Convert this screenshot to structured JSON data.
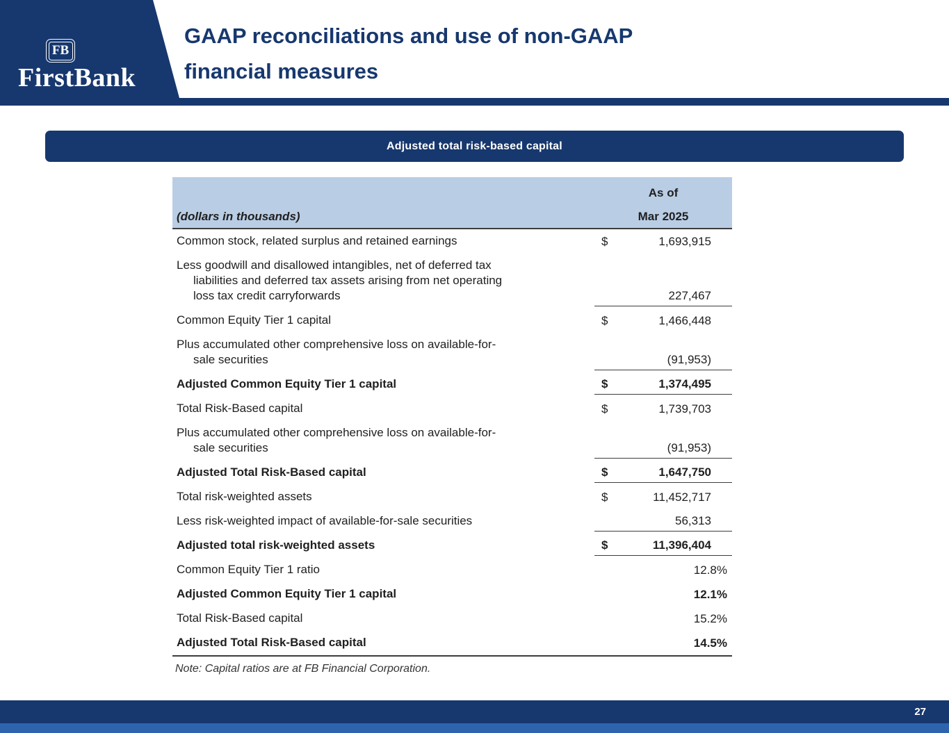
{
  "colors": {
    "navy": "#17386e",
    "table_header_bg": "#b9cde4",
    "footer_accent": "#2d64ad",
    "rule": "#3c3c3c"
  },
  "logo": {
    "badge": "FB",
    "name": "FirstBank"
  },
  "header": {
    "title": "GAAP reconciliations and use of non-GAAP\nfinancial measures"
  },
  "banner": {
    "label": "Adjusted total risk-based capital"
  },
  "table": {
    "header": {
      "left": "(dollars in thousands)",
      "right_top": "As of",
      "right_bottom": "Mar 2025"
    },
    "rows": [
      {
        "label": "Common stock, related surplus and retained earnings",
        "dollar": "$",
        "value": "1,693,915"
      },
      {
        "label": "Less goodwill and disallowed intangibles, net of deferred tax\nliabilities and deferred tax assets arising from net operating\nloss tax credit carryforwards",
        "dollar": "",
        "value": "227,467",
        "line_below": true
      },
      {
        "label": "Common Equity Tier 1 capital",
        "dollar": "$",
        "value": "1,466,448"
      },
      {
        "label": "Plus accumulated other comprehensive loss on available-for-\nsale securities",
        "dollar": "",
        "value": "(91,953)",
        "line_below": true
      },
      {
        "label": "Adjusted Common Equity Tier 1 capital",
        "dollar": "$",
        "value": "1,374,495",
        "bold": true,
        "line_below": true
      },
      {
        "label": "Total Risk-Based capital",
        "dollar": "$",
        "value": "1,739,703"
      },
      {
        "label": "Plus accumulated other comprehensive loss on available-for-\nsale securities",
        "dollar": "",
        "value": "(91,953)",
        "line_below": true
      },
      {
        "label": "Adjusted Total Risk-Based capital",
        "dollar": "$",
        "value": "1,647,750",
        "bold": true,
        "line_below": true
      },
      {
        "label": "Total risk-weighted assets",
        "dollar": "$",
        "value": "11,452,717"
      },
      {
        "label": "Less risk-weighted impact of available-for-sale securities",
        "dollar": "",
        "value": "56,313",
        "line_below": true
      },
      {
        "label": "Adjusted total risk-weighted assets",
        "dollar": "$",
        "value": "11,396,404",
        "bold": true,
        "line_below": true
      },
      {
        "label": "Common Equity Tier 1 ratio",
        "dollar": "",
        "value": "12.8%",
        "percent": true
      },
      {
        "label": "Adjusted Common Equity Tier 1 capital",
        "dollar": "",
        "value": "12.1%",
        "bold": true,
        "percent": true
      },
      {
        "label": "Total Risk-Based capital",
        "dollar": "",
        "value": "15.2%",
        "percent": true
      },
      {
        "label": "Adjusted Total Risk-Based capital",
        "dollar": "",
        "value": "14.5%",
        "bold": true,
        "percent": true,
        "full_line_below": true
      }
    ]
  },
  "note": "Note: Capital ratios are at FB Financial Corporation.",
  "footer": {
    "page_number": "27"
  }
}
